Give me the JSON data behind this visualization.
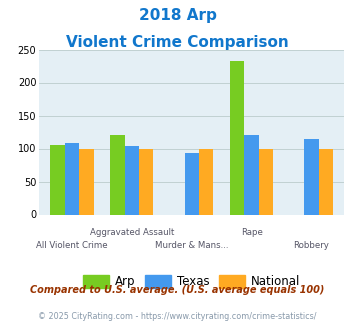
{
  "title_line1": "2018 Arp",
  "title_line2": "Violent Crime Comparison",
  "arp": [
    105,
    120,
    0,
    232,
    0
  ],
  "texas": [
    108,
    104,
    93,
    120,
    115
  ],
  "national": [
    100,
    100,
    100,
    100,
    100
  ],
  "group_labels_top": [
    "",
    "Aggravated Assault",
    "",
    "Rape",
    ""
  ],
  "group_labels_bottom": [
    "All Violent Crime",
    "",
    "Murder & Mans...",
    "",
    "Robbery"
  ],
  "color_arp": "#77cc22",
  "color_texas": "#4499ee",
  "color_national": "#ffaa22",
  "ylim": [
    0,
    250
  ],
  "yticks": [
    0,
    50,
    100,
    150,
    200,
    250
  ],
  "bg_color": "#e4eff5",
  "title_color": "#1177cc",
  "legend_labels": [
    "Arp",
    "Texas",
    "National"
  ],
  "footnote1": "Compared to U.S. average. (U.S. average equals 100)",
  "footnote2": "© 2025 CityRating.com - https://www.cityrating.com/crime-statistics/",
  "footnote1_color": "#993300",
  "footnote2_color": "#8899aa"
}
